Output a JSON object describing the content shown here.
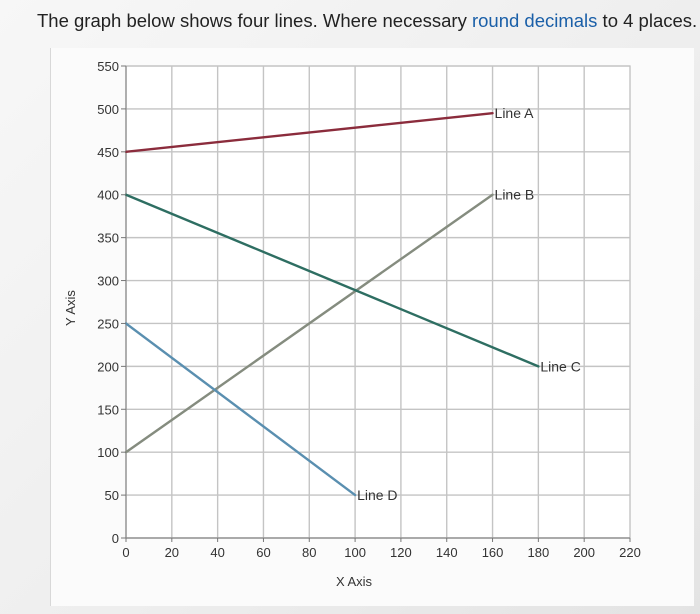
{
  "prompt": {
    "text_before": "The graph below shows four lines. Where necessary ",
    "highlight": "round decimals",
    "text_after": " to 4 places."
  },
  "chart_data": {
    "type": "line",
    "title": "",
    "xlabel": "X Axis",
    "ylabel": "Y Axis",
    "xlim": [
      0,
      220
    ],
    "ylim": [
      0,
      550
    ],
    "x_ticks": [
      0,
      20,
      40,
      60,
      80,
      100,
      120,
      140,
      160,
      180,
      200,
      220
    ],
    "y_ticks": [
      0,
      50,
      100,
      150,
      200,
      250,
      300,
      350,
      400,
      450,
      500,
      550
    ],
    "grid": true,
    "series": [
      {
        "name": "Line A",
        "color": "#8b2c3c",
        "x": [
          0,
          160
        ],
        "y": [
          450,
          495
        ]
      },
      {
        "name": "Line B",
        "color": "#858c7f",
        "x": [
          0,
          160
        ],
        "y": [
          100,
          400
        ]
      },
      {
        "name": "Line C",
        "color": "#2e6e62",
        "x": [
          0,
          180
        ],
        "y": [
          400,
          200
        ]
      },
      {
        "name": "Line D",
        "color": "#5a8fb0",
        "x": [
          0,
          100
        ],
        "y": [
          250,
          50
        ]
      }
    ]
  }
}
